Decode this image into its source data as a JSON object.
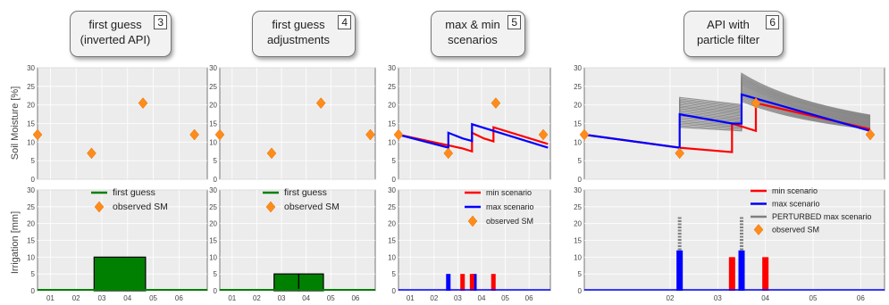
{
  "ylabel_top": "Soil Moisture [%]",
  "ylabel_bottom": "Irrigation [mm]",
  "callouts": [
    {
      "line1": "first guess",
      "line2": "(inverted API)",
      "num": "3"
    },
    {
      "line1": "first guess",
      "line2": "adjustments",
      "num": "4"
    },
    {
      "line1": "max & min",
      "line2": "scenarios",
      "num": "5"
    },
    {
      "line1": "API with",
      "line2": "particle filter",
      "num": "6"
    }
  ],
  "colors": {
    "observed": "#ff8c1a",
    "first_guess": "#008000",
    "min": "#ff0000",
    "max": "#0000ff",
    "perturbed": "#808080",
    "grid_bg": "#ececec"
  },
  "chart_data": [
    {
      "type": "scatter+bar",
      "panel": 1,
      "x_tick_labels": [
        "01",
        "02",
        "03",
        "04",
        "05",
        "06"
      ],
      "sm": {
        "ylim": [
          0,
          30
        ],
        "yticks": [
          0,
          5,
          10,
          15,
          20,
          25,
          30
        ],
        "observed_points": [
          [
            0,
            12
          ],
          [
            2.1,
            7
          ],
          [
            4.1,
            20.5
          ],
          [
            6.1,
            12
          ]
        ]
      },
      "irrigation": {
        "ylim": [
          0,
          30
        ],
        "yticks": [
          0,
          5,
          10,
          15,
          20,
          25,
          30
        ],
        "first_guess_bars": [
          {
            "x0": 2.2,
            "x1": 4.2,
            "value": 10
          }
        ],
        "legend": [
          "first guess",
          "observed SM"
        ]
      }
    },
    {
      "type": "scatter+bar",
      "panel": 2,
      "x_tick_labels": [
        "01",
        "02",
        "03",
        "04",
        "05",
        "06"
      ],
      "sm": {
        "ylim": [
          0,
          30
        ],
        "yticks": [
          0,
          5,
          10,
          15,
          20,
          25,
          30
        ],
        "observed_points": [
          [
            0,
            12
          ],
          [
            2.1,
            7
          ],
          [
            4.1,
            20.5
          ],
          [
            6.1,
            12
          ]
        ]
      },
      "irrigation": {
        "ylim": [
          0,
          30
        ],
        "yticks": [
          0,
          5,
          10,
          15,
          20,
          25,
          30
        ],
        "first_guess_bars": [
          {
            "x0": 2.2,
            "x1": 3.2,
            "value": 5
          },
          {
            "x0": 3.2,
            "x1": 4.2,
            "value": 5
          }
        ],
        "legend": [
          "first guess",
          "observed SM"
        ]
      }
    },
    {
      "type": "line+bar",
      "panel": 3,
      "x_tick_labels": [
        "01",
        "02",
        "03",
        "04",
        "05",
        "06"
      ],
      "sm": {
        "ylim": [
          0,
          30
        ],
        "yticks": [
          0,
          5,
          10,
          15,
          20,
          25,
          30
        ],
        "observed_points": [
          [
            0,
            12
          ],
          [
            2.1,
            7
          ],
          [
            4.1,
            20.5
          ],
          [
            6.1,
            12
          ]
        ],
        "min_scenario": [
          [
            0,
            12
          ],
          [
            2.7,
            8.3
          ],
          [
            2.7,
            8.3
          ],
          [
            3.1,
            7.5
          ],
          [
            3.1,
            12.5
          ],
          [
            3.6,
            11
          ],
          [
            3.6,
            11
          ],
          [
            4.0,
            10.2
          ],
          [
            4.0,
            14
          ],
          [
            6.3,
            9.5
          ]
        ],
        "max_scenario": [
          [
            0,
            12
          ],
          [
            2.1,
            8.5
          ],
          [
            2.1,
            12.5
          ],
          [
            2.7,
            11
          ],
          [
            2.7,
            11
          ],
          [
            3.1,
            10.3
          ],
          [
            3.1,
            14.8
          ],
          [
            6.3,
            8.5
          ]
        ]
      },
      "irrigation": {
        "ylim": [
          0,
          30
        ],
        "yticks": [
          0,
          5,
          10,
          15,
          20,
          25,
          30
        ],
        "min_bars": [
          [
            2.7,
            5
          ],
          [
            3.1,
            5
          ],
          [
            4.0,
            5
          ]
        ],
        "max_bars": [
          [
            2.1,
            5
          ],
          [
            3.2,
            5
          ]
        ],
        "legend": [
          "min scenario",
          "max scenario",
          "observed SM"
        ]
      }
    },
    {
      "type": "line+bar",
      "panel": 4,
      "x_tick_labels": [
        "02",
        "03",
        "04",
        "05",
        "06"
      ],
      "sm": {
        "ylim": [
          0,
          30
        ],
        "yticks": [
          0,
          5,
          10,
          15,
          20,
          25,
          30
        ],
        "observed_points": [
          [
            0,
            12
          ],
          [
            2.0,
            7
          ],
          [
            3.6,
            20.5
          ],
          [
            6.0,
            12
          ]
        ],
        "min_scenario": [
          [
            0,
            12
          ],
          [
            2.0,
            8.5
          ],
          [
            2.0,
            8.5
          ],
          [
            3.1,
            7.3
          ],
          [
            3.1,
            15
          ],
          [
            3.6,
            13
          ],
          [
            3.6,
            20.5
          ],
          [
            6.0,
            13.5
          ]
        ],
        "max_scenario": [
          [
            0,
            12
          ],
          [
            2.0,
            8.5
          ],
          [
            2.0,
            17.5
          ],
          [
            3.1,
            15
          ],
          [
            3.3,
            15
          ],
          [
            3.3,
            22.8
          ],
          [
            6.0,
            13
          ]
        ],
        "perturbed_peaks": {
          "x": [
            2.0,
            3.3
          ],
          "low": [
            14,
            21
          ],
          "high": [
            22,
            28.5
          ],
          "decay_ratio": 0.5,
          "end_x": 6.0,
          "count": 22
        }
      },
      "irrigation": {
        "ylim": [
          0,
          30
        ],
        "yticks": [
          0,
          5,
          10,
          15,
          20,
          25,
          30
        ],
        "min_bars": [
          [
            3.1,
            10
          ],
          [
            3.8,
            10
          ]
        ],
        "max_bars": [
          [
            2.0,
            12
          ],
          [
            3.3,
            12
          ]
        ],
        "perturbed_bars": [
          [
            2.0,
            22
          ],
          [
            3.3,
            22
          ]
        ],
        "legend": [
          "min scenario",
          "max scenario",
          "PERTURBED max scenario",
          "observed SM"
        ]
      }
    }
  ]
}
